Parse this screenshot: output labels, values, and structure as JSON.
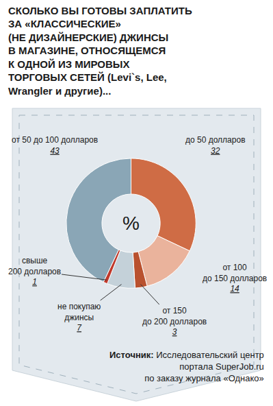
{
  "chart_data": {
    "type": "pie",
    "title": "СКОЛЬКО ВЫ ГОТОВЫ ЗАПЛАТИТЬ\nЗА «КЛАССИЧЕСКИЕ»\n(НЕ ДИЗАЙНЕРСКИЕ) ДЖИНСЫ\nВ МАГАЗИНЕ, ОТНОСЯЩЕМСЯ\nК ОДНОЙ ИЗ МИРОВЫХ\nТОРГОВЫХ СЕТЕЙ (Levi`s, Lee,\nWrangler и другие)...",
    "categories": [
      "до 50 долларов",
      "от 100\nдо 150 долларов",
      "от 150\nдо 200 долларов",
      "не покупаю\nджинсы",
      "свыше\n200 долларов",
      "от 50 до 100 долларов"
    ],
    "values": [
      32,
      14,
      3,
      7,
      1,
      43
    ],
    "colors": [
      "#cf6c45",
      "#eab39c",
      "#b9512e",
      "#c4d1d9",
      "#c0392b",
      "#8aa6b6"
    ],
    "data_labels": true,
    "center_label": "%",
    "source_label": "Источник:",
    "source": "Исследовательский центр\nпортала SuperJob.ru\nпо заказу журнала «Однако»"
  }
}
